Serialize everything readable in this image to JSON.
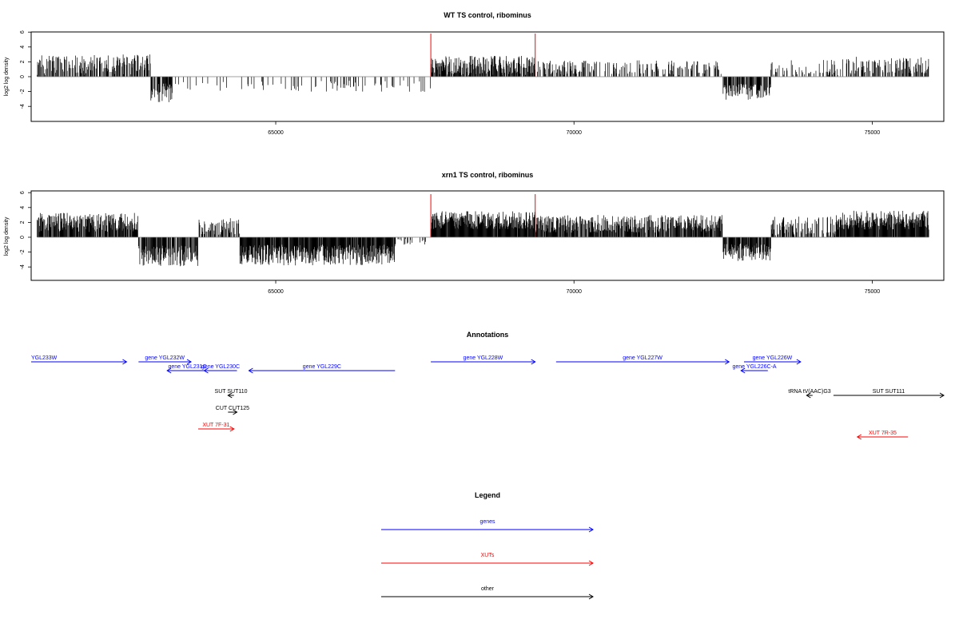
{
  "colors": {
    "genes": "#0000ff",
    "xuts": "#ff0000",
    "other": "#000000",
    "bar": "#000000",
    "highlight": "#ff0000",
    "axis": "#000000",
    "baseline": "#808080"
  },
  "chart_data": [
    {
      "type": "bar",
      "title": "WT TS control, ribominus",
      "ylabel": "log2 log density",
      "xlim": [
        60900,
        76200
      ],
      "ylim": [
        -6,
        6.3
      ],
      "xticks": [
        65000,
        70000,
        75000
      ],
      "xtick_labels": [
        "65000",
        "70000",
        "75000"
      ],
      "yticks": [
        -4,
        -2,
        0,
        2,
        4,
        6
      ],
      "ytick_labels": [
        "-4",
        "-2",
        "0",
        "2",
        "4",
        "6"
      ],
      "highlight_x": [
        67600,
        69350
      ],
      "highlight_y": 5.8,
      "segments": [
        {
          "from": 61000,
          "to": 62900,
          "density": 0.55,
          "mean": 1.6,
          "spread": 1.4
        },
        {
          "from": 62900,
          "to": 63300,
          "density": 0.7,
          "mean": -2.2,
          "spread": 1.3
        },
        {
          "from": 63300,
          "to": 67600,
          "density": 0.12,
          "mean": -1.3,
          "spread": 0.8
        },
        {
          "from": 67600,
          "to": 69350,
          "density": 0.75,
          "mean": 1.5,
          "spread": 1.3
        },
        {
          "from": 69350,
          "to": 72500,
          "density": 0.35,
          "mean": 1.2,
          "spread": 1.0
        },
        {
          "from": 72500,
          "to": 73300,
          "density": 0.7,
          "mean": -2.0,
          "spread": 1.1
        },
        {
          "from": 73300,
          "to": 74600,
          "density": 0.25,
          "mean": 0.8,
          "spread": 1.6
        },
        {
          "from": 74600,
          "to": 75950,
          "density": 0.55,
          "mean": 1.5,
          "spread": 1.2
        }
      ]
    },
    {
      "type": "bar",
      "title": "xrn1 TS control, ribominus",
      "ylabel": "log2 log density",
      "xlim": [
        60900,
        76200
      ],
      "ylim": [
        -6,
        6.3
      ],
      "xticks": [
        65000,
        70000,
        75000
      ],
      "xtick_labels": [
        "65000",
        "70000",
        "75000"
      ],
      "yticks": [
        -4,
        -2,
        0,
        2,
        4,
        6
      ],
      "ytick_labels": [
        "-4",
        "-2",
        "0",
        "2",
        "4",
        "6"
      ],
      "highlight_x": [
        67600,
        69350
      ],
      "highlight_y": 5.8,
      "segments": [
        {
          "from": 61000,
          "to": 62700,
          "density": 0.85,
          "mean": 2.0,
          "spread": 1.3
        },
        {
          "from": 62700,
          "to": 63700,
          "density": 0.85,
          "mean": -2.5,
          "spread": 1.4
        },
        {
          "from": 63700,
          "to": 64400,
          "density": 0.55,
          "mean": 1.4,
          "spread": 1.2
        },
        {
          "from": 64400,
          "to": 67000,
          "density": 0.9,
          "mean": -2.4,
          "spread": 1.4
        },
        {
          "from": 67000,
          "to": 67600,
          "density": 0.2,
          "mean": -0.6,
          "spread": 0.4
        },
        {
          "from": 67600,
          "to": 69350,
          "density": 0.95,
          "mean": 2.3,
          "spread": 1.2
        },
        {
          "from": 69350,
          "to": 72500,
          "density": 0.8,
          "mean": 1.8,
          "spread": 1.2
        },
        {
          "from": 72500,
          "to": 73300,
          "density": 0.85,
          "mean": -2.0,
          "spread": 1.2
        },
        {
          "from": 73300,
          "to": 74400,
          "density": 0.6,
          "mean": 1.2,
          "spread": 1.6
        },
        {
          "from": 74400,
          "to": 75950,
          "density": 0.95,
          "mean": 2.3,
          "spread": 1.3
        }
      ]
    }
  ],
  "annotations": {
    "title": "Annotations",
    "features": [
      {
        "label": "YGL233W",
        "start": 60900,
        "end": 62500,
        "strand": "+",
        "row": 0,
        "kind": "genes"
      },
      {
        "label": "gene YGL232W",
        "start": 62700,
        "end": 63580,
        "strand": "+",
        "row": 0,
        "kind": "genes"
      },
      {
        "label": "gene YGL231C",
        "start": 63180,
        "end": 63860,
        "strand": "-",
        "row": 1,
        "kind": "genes"
      },
      {
        "label": "gene YGL230C",
        "start": 63800,
        "end": 64350,
        "strand": "-",
        "row": 1,
        "kind": "genes"
      },
      {
        "label": "gene YGL229C",
        "start": 64550,
        "end": 67000,
        "strand": "-",
        "row": 1,
        "kind": "genes"
      },
      {
        "label": "gene YGL228W",
        "start": 67600,
        "end": 69350,
        "strand": "+",
        "row": 0,
        "kind": "genes"
      },
      {
        "label": "gene YGL227W",
        "start": 69700,
        "end": 72600,
        "strand": "+",
        "row": 0,
        "kind": "genes"
      },
      {
        "label": "gene YGL226W",
        "start": 72850,
        "end": 73800,
        "strand": "+",
        "row": 0,
        "kind": "genes"
      },
      {
        "label": "gene YGL226C-A",
        "start": 72800,
        "end": 73250,
        "strand": "-",
        "row": 1,
        "kind": "genes"
      },
      {
        "label": "SUT SUT110",
        "start": 64200,
        "end": 64300,
        "strand": "-",
        "row": 2,
        "kind": "other"
      },
      {
        "label": "tRNA tV(AAC)G3",
        "start": 73900,
        "end": 74000,
        "strand": "-",
        "row": 2,
        "kind": "other"
      },
      {
        "label": "SUT SUT111",
        "start": 74350,
        "end": 76200,
        "strand": "+",
        "row": 3,
        "kind": "other"
      },
      {
        "label": "CUT CUT125",
        "start": 64200,
        "end": 64350,
        "strand": "+",
        "row": 4,
        "kind": "other"
      },
      {
        "label": "XUT 7F-31",
        "start": 63700,
        "end": 64300,
        "strand": "+",
        "row": 5,
        "kind": "xuts"
      },
      {
        "label": "XUT 7R-35",
        "start": 74750,
        "end": 75600,
        "strand": "-",
        "row": 6,
        "kind": "xuts"
      }
    ]
  },
  "legend": {
    "title": "Legend",
    "entries": [
      {
        "label": "genes",
        "kind": "genes"
      },
      {
        "label": "XUTs",
        "kind": "xuts"
      },
      {
        "label": "other",
        "kind": "other"
      }
    ]
  }
}
